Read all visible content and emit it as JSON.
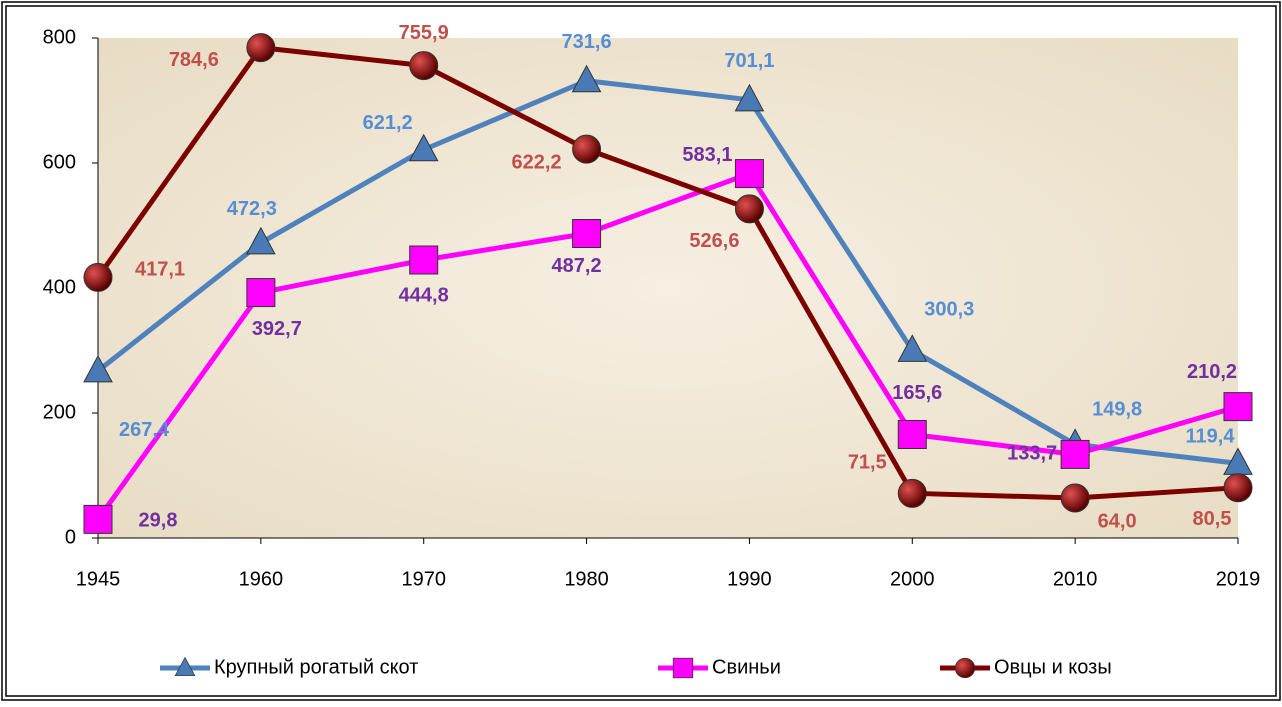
{
  "chart_data": {
    "type": "line",
    "categories": [
      "1945",
      "1960",
      "1970",
      "1980",
      "1990",
      "2000",
      "2010",
      "2019"
    ],
    "ylim": [
      0,
      800
    ],
    "yticks": [
      0,
      200,
      400,
      600,
      800
    ],
    "legend": "bottom",
    "series": [
      {
        "name": "Крупный рогатый скот",
        "color": "#4f81bd",
        "marker": "triangle",
        "values": [
          267.4,
          472.3,
          621.2,
          731.6,
          701.1,
          300.3,
          149.8,
          119.4
        ],
        "value_labels": [
          "267,4",
          "472,3",
          "621,2",
          "731,6",
          "701,1",
          "300,3",
          "149,8",
          "119,4"
        ]
      },
      {
        "name": "Свиньи",
        "color": "#ff00ff",
        "marker": "square",
        "values": [
          29.8,
          392.7,
          444.8,
          487.2,
          583.1,
          165.6,
          133.7,
          210.2
        ],
        "value_labels": [
          "29,8",
          "392,7",
          "444,8",
          "487,2",
          "583,1",
          "165,6",
          "133,7",
          "210,2"
        ]
      },
      {
        "name": "Овцы и козы",
        "color": "#7b0000",
        "marker": "circle",
        "values": [
          417.1,
          784.6,
          755.9,
          622.2,
          526.6,
          71.5,
          64.0,
          80.5
        ],
        "value_labels": [
          "417,1",
          "784,6",
          "755,9",
          "622,2",
          "526,6",
          "71,5",
          "64,0",
          "80,5"
        ]
      }
    ]
  }
}
